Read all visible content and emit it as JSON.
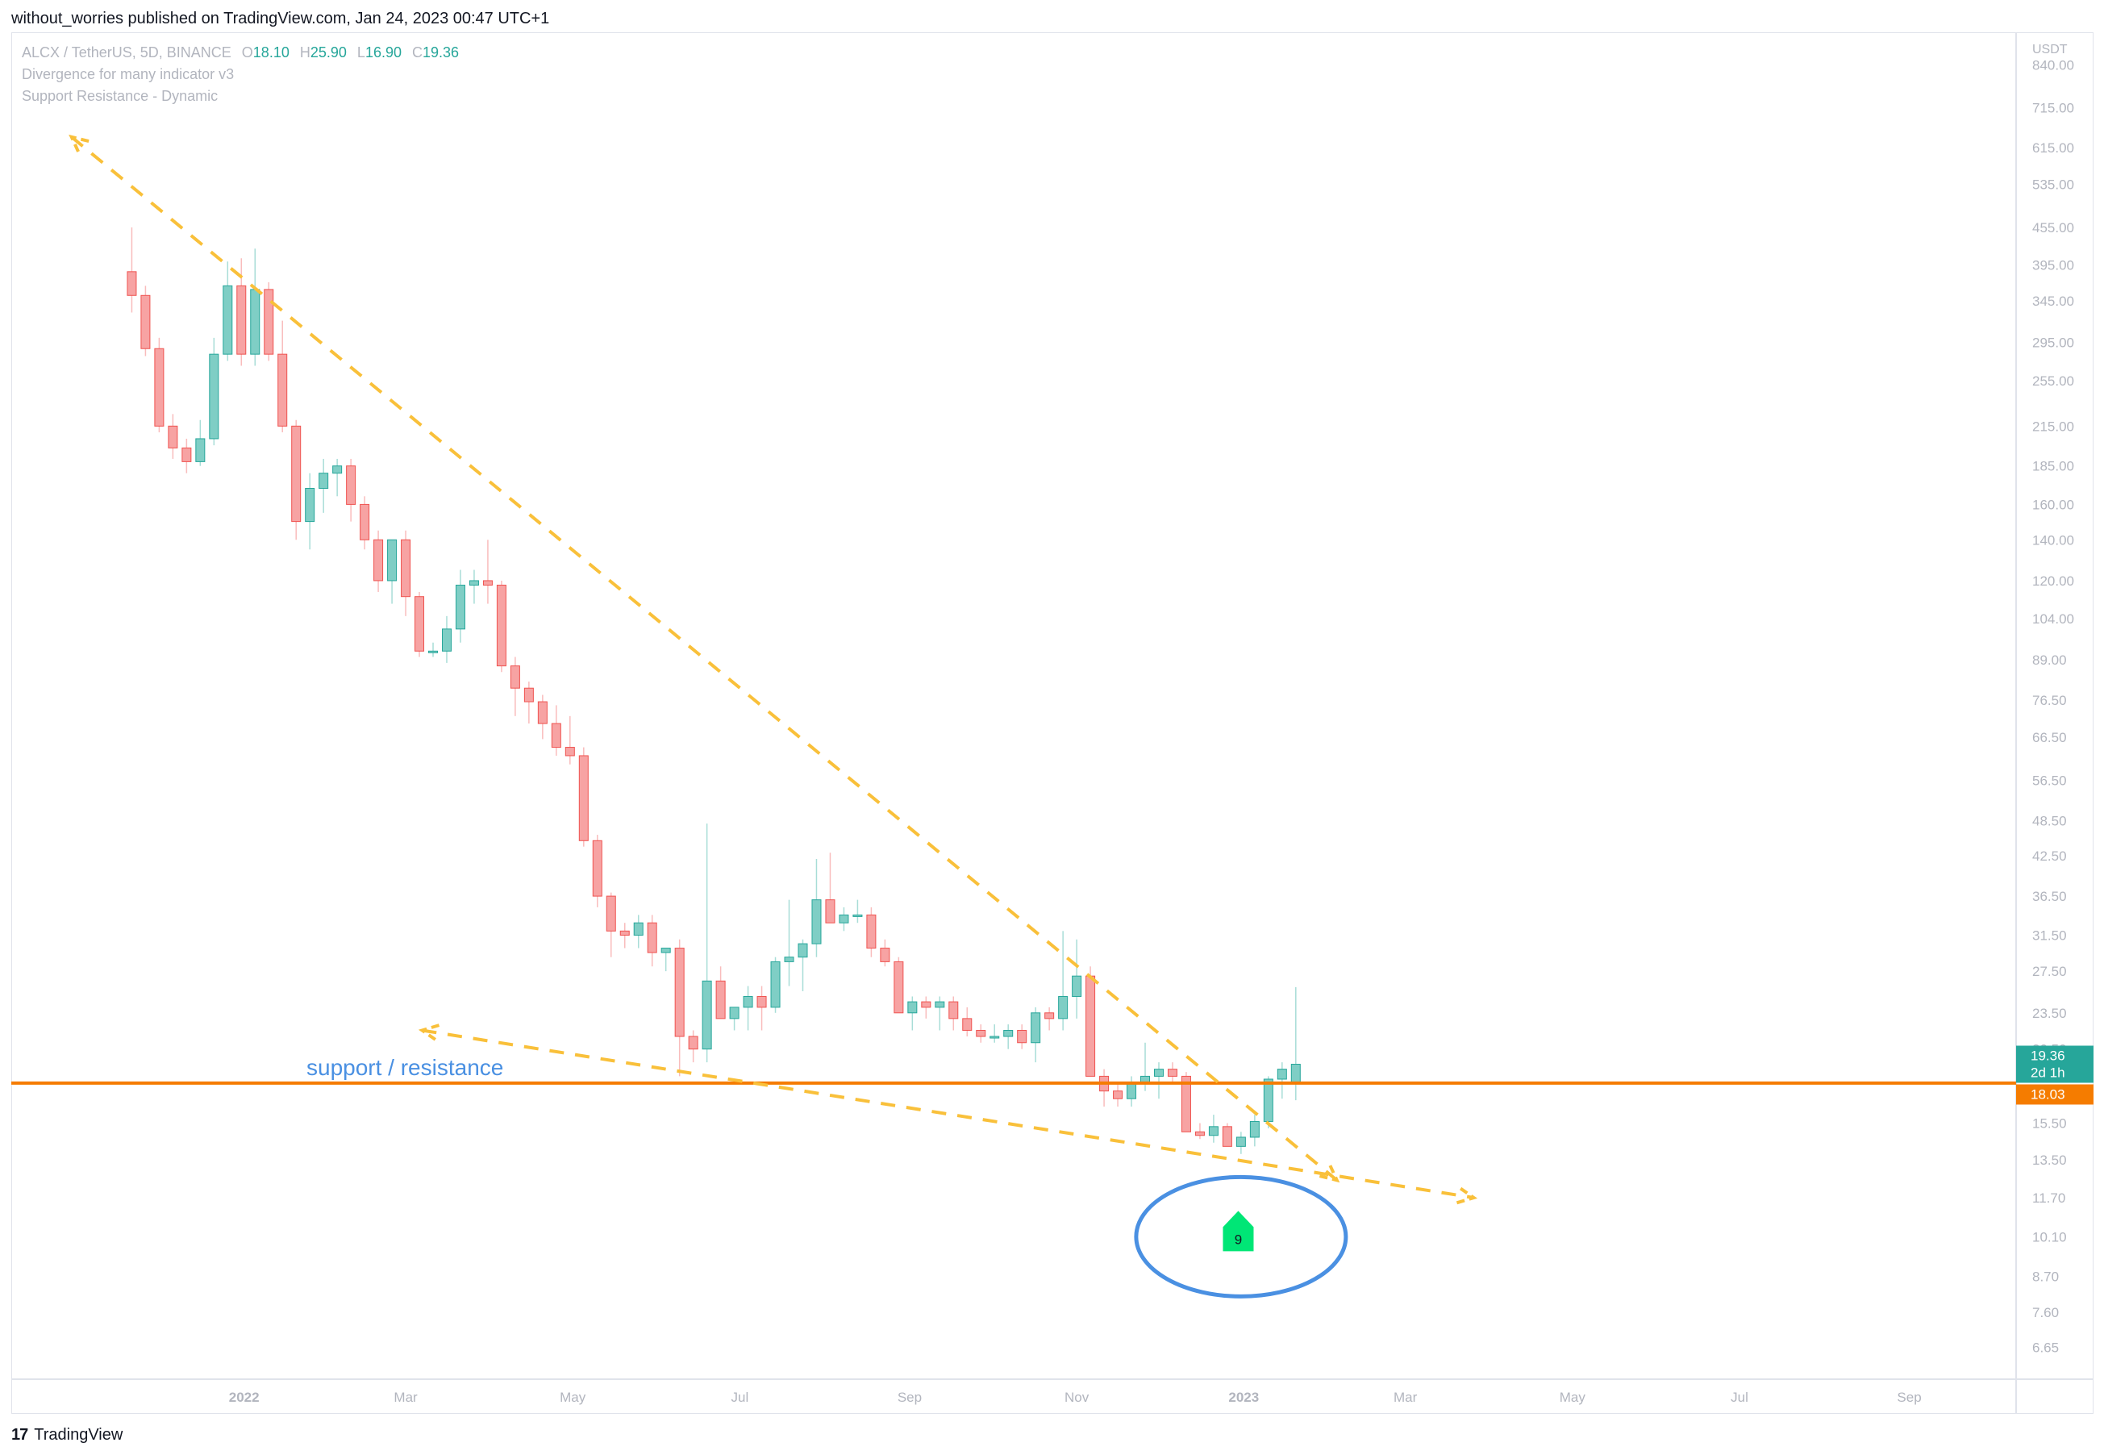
{
  "header": {
    "published_line": "without_worries published on TradingView.com, Jan 24, 2023 00:47 UTC+1"
  },
  "legend": {
    "symbol": "ALCX / TetherUS, 5D, BINANCE",
    "ohlc": [
      {
        "k": "O",
        "v": "18.10"
      },
      {
        "k": "H",
        "v": "25.90"
      },
      {
        "k": "L",
        "v": "16.90"
      },
      {
        "k": "C",
        "v": "19.36"
      }
    ],
    "indicators": [
      "Divergence for many indicator v3",
      "Support Resistance - Dynamic"
    ]
  },
  "footer": {
    "brand": "TradingView"
  },
  "colors": {
    "up": "#26a69a",
    "down": "#ef5350",
    "support": "#f57c00",
    "trend": "#f9c03a",
    "circle": "#4a90e2",
    "signal": "#00e676"
  },
  "chart_data": {
    "type": "candlestick",
    "price_scale": "log",
    "y_unit": "USDT",
    "y_ticks": [
      "840.00",
      "715.00",
      "615.00",
      "535.00",
      "455.00",
      "395.00",
      "345.00",
      "295.00",
      "255.00",
      "215.00",
      "185.00",
      "160.00",
      "140.00",
      "120.00",
      "104.00",
      "89.00",
      "76.50",
      "66.50",
      "56.50",
      "48.50",
      "42.50",
      "36.50",
      "31.50",
      "27.50",
      "23.50",
      "20.50",
      "15.50",
      "13.50",
      "11.70",
      "10.10",
      "8.70",
      "7.60",
      "6.65"
    ],
    "ylim": [
      5.9,
      950
    ],
    "x_ticks": [
      {
        "label": "2022",
        "date": "2022-01-01",
        "bold": true
      },
      {
        "label": "Mar",
        "date": "2022-03-01"
      },
      {
        "label": "May",
        "date": "2022-05-01"
      },
      {
        "label": "Jul",
        "date": "2022-07-01"
      },
      {
        "label": "Sep",
        "date": "2022-09-01"
      },
      {
        "label": "Nov",
        "date": "2022-11-01"
      },
      {
        "label": "2023",
        "date": "2023-01-01",
        "bold": true
      },
      {
        "label": "Mar",
        "date": "2023-03-01"
      },
      {
        "label": "May",
        "date": "2023-05-01"
      },
      {
        "label": "Jul",
        "date": "2023-07-01"
      },
      {
        "label": "Sep",
        "date": "2023-09-01"
      }
    ],
    "xlim": [
      "2021-10-08",
      "2023-10-10"
    ],
    "bar_interval_days": 5,
    "first_bar_date": "2021-11-21",
    "candles": [
      [
        385,
        455,
        330,
        352
      ],
      [
        352,
        365,
        280,
        288
      ],
      [
        288,
        300,
        210,
        215
      ],
      [
        215,
        225,
        190,
        198
      ],
      [
        198,
        205,
        180,
        188
      ],
      [
        188,
        220,
        185,
        205
      ],
      [
        205,
        300,
        200,
        282
      ],
      [
        282,
        400,
        275,
        365
      ],
      [
        365,
        405,
        270,
        282
      ],
      [
        282,
        420,
        270,
        360
      ],
      [
        360,
        370,
        275,
        282
      ],
      [
        282,
        320,
        210,
        215
      ],
      [
        215,
        220,
        140,
        150
      ],
      [
        150,
        180,
        135,
        170
      ],
      [
        170,
        190,
        155,
        180
      ],
      [
        180,
        190,
        165,
        185
      ],
      [
        185,
        190,
        150,
        160
      ],
      [
        160,
        165,
        135,
        140
      ],
      [
        140,
        145,
        115,
        120
      ],
      [
        120,
        140,
        110,
        140
      ],
      [
        140,
        145,
        105,
        113
      ],
      [
        113,
        115,
        90,
        92
      ],
      [
        92,
        95,
        90,
        92
      ],
      [
        92,
        105,
        88,
        100
      ],
      [
        100,
        125,
        95,
        118
      ],
      [
        118,
        125,
        110,
        120
      ],
      [
        120,
        140,
        110,
        118
      ],
      [
        118,
        120,
        85,
        87
      ],
      [
        87,
        90,
        72,
        80
      ],
      [
        80,
        82,
        70,
        76
      ],
      [
        76,
        78,
        66,
        70
      ],
      [
        70,
        75,
        62,
        64
      ],
      [
        64,
        72,
        60,
        62
      ],
      [
        62,
        64,
        44,
        45
      ],
      [
        45,
        46,
        35,
        36.5
      ],
      [
        36.5,
        37,
        29,
        32
      ],
      [
        32,
        33,
        30,
        31.5
      ],
      [
        31.5,
        34,
        30,
        33
      ],
      [
        33,
        34,
        28,
        29.5
      ],
      [
        29.5,
        30,
        27.5,
        30
      ],
      [
        30,
        31,
        18.5,
        21.5
      ],
      [
        21.5,
        22,
        19.5,
        20.5
      ],
      [
        20.5,
        48,
        19.5,
        26.5
      ],
      [
        26.5,
        28,
        23,
        23
      ],
      [
        23,
        24,
        22,
        24
      ],
      [
        24,
        26,
        22,
        25
      ],
      [
        25,
        26,
        22,
        24
      ],
      [
        24,
        29,
        23.5,
        28.5
      ],
      [
        28.5,
        36,
        26,
        29
      ],
      [
        29,
        31,
        25.5,
        30.5
      ],
      [
        30.5,
        42,
        29,
        36
      ],
      [
        36,
        43,
        33,
        33
      ],
      [
        33,
        35,
        32,
        34
      ],
      [
        34,
        36,
        33,
        34
      ],
      [
        34,
        35,
        29,
        30
      ],
      [
        30,
        31,
        28,
        28.5
      ],
      [
        28.5,
        29,
        23.5,
        23.5
      ],
      [
        23.5,
        25,
        22,
        24.5
      ],
      [
        24.5,
        25,
        23,
        24
      ],
      [
        24,
        25,
        22,
        24.5
      ],
      [
        24.5,
        25,
        22,
        23
      ],
      [
        23,
        24,
        21.5,
        22
      ],
      [
        22,
        22.5,
        21,
        21.5
      ],
      [
        21.5,
        22.5,
        21,
        21.5
      ],
      [
        21.5,
        22.5,
        20.5,
        22
      ],
      [
        22,
        22.5,
        20.5,
        21
      ],
      [
        21,
        24,
        19.5,
        23.5
      ],
      [
        23.5,
        24,
        22,
        23
      ],
      [
        23,
        32,
        22,
        25
      ],
      [
        25,
        31,
        23,
        27
      ],
      [
        27,
        28,
        18.5,
        18.5
      ],
      [
        18.5,
        19,
        16.5,
        17.5
      ],
      [
        17.5,
        18,
        16.5,
        17
      ],
      [
        17,
        18.5,
        16.5,
        18
      ],
      [
        18,
        21,
        17.5,
        18.5
      ],
      [
        18.5,
        19.5,
        17,
        19
      ],
      [
        19,
        19.5,
        18,
        18.5
      ],
      [
        18.5,
        18.8,
        15,
        15
      ],
      [
        15,
        15.5,
        14.6,
        14.8
      ],
      [
        14.8,
        16,
        14.4,
        15.3
      ],
      [
        15.3,
        15.5,
        14.2,
        14.2
      ],
      [
        14.2,
        15,
        13.8,
        14.7
      ],
      [
        14.7,
        16,
        14.2,
        15.6
      ],
      [
        15.6,
        18.5,
        15.2,
        18.3
      ],
      [
        18.3,
        19.5,
        17,
        19
      ],
      [
        18.1,
        25.9,
        16.9,
        19.36
      ]
    ],
    "support_resistance": {
      "label": "support / resistance",
      "value": 18.03
    },
    "trendlines": [
      {
        "from": {
          "date": "2021-10-30",
          "price": 640
        },
        "to": {
          "date": "2023-02-04",
          "price": 12.5
        }
      },
      {
        "from": {
          "date": "2022-03-07",
          "price": 22
        },
        "to": {
          "date": "2023-03-26",
          "price": 11.7
        }
      }
    ],
    "annotation_circle": {
      "date": "2022-12-31",
      "price": 10.1
    },
    "signal_marker": {
      "label": "9",
      "date": "2022-12-30",
      "price": 10.1
    },
    "price_labels": [
      {
        "lines": [
          "19.36",
          "2d 1h"
        ],
        "value": 19.36,
        "color": "#26a69a"
      },
      {
        "lines": [
          "18.03"
        ],
        "value": 18.03,
        "color": "#f57c00"
      }
    ]
  }
}
